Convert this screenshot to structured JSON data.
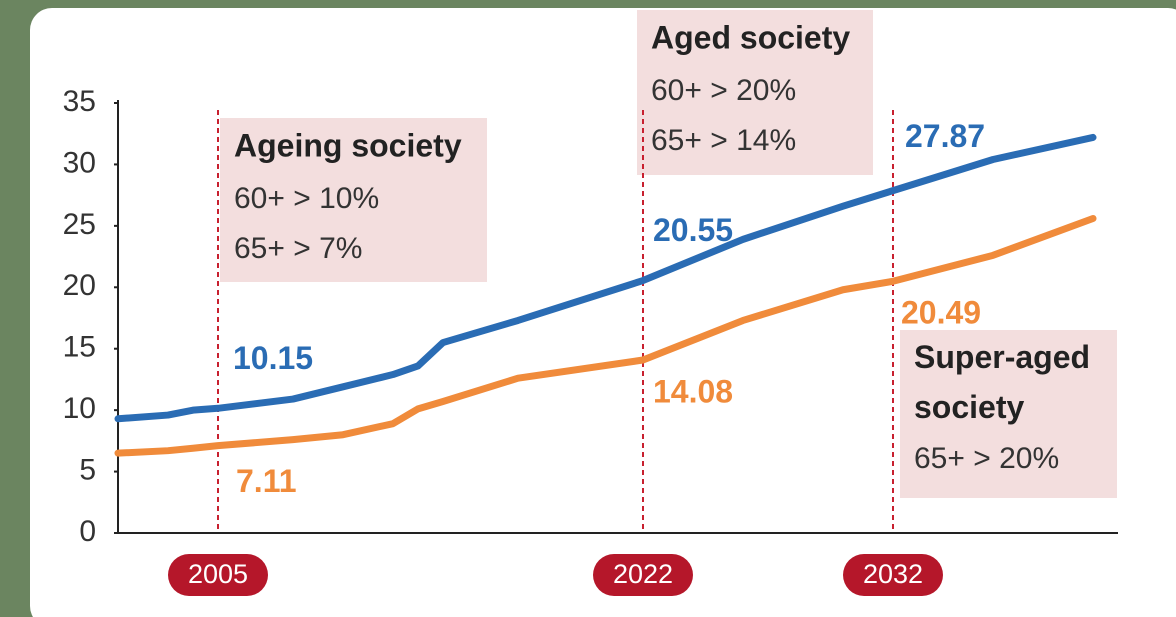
{
  "chart_data": {
    "type": "line",
    "x": [
      2001,
      2003,
      2004,
      2005,
      2008,
      2010,
      2012,
      2013,
      2014,
      2017,
      2022,
      2026,
      2030,
      2032,
      2036,
      2040
    ],
    "series": [
      {
        "color": "#2a6cb4",
        "values": [
          9.3,
          9.6,
          10.0,
          10.15,
          10.9,
          11.9,
          12.9,
          13.6,
          15.5,
          17.3,
          20.55,
          23.9,
          26.6,
          27.87,
          30.4,
          32.2
        ]
      },
      {
        "color": "#f08b3b",
        "values": [
          6.5,
          6.7,
          6.9,
          7.11,
          7.6,
          8.0,
          8.9,
          10.1,
          10.7,
          12.6,
          14.08,
          17.3,
          19.8,
          20.49,
          22.6,
          25.6
        ]
      }
    ],
    "xlim": [
      2001,
      2041
    ],
    "xticks": [
      2005,
      2022,
      2032
    ],
    "ylim": [
      0,
      35
    ],
    "yticks": [
      0,
      5,
      10,
      15,
      20,
      25,
      30,
      35
    ],
    "annotations": [
      {
        "title": "Ageing society",
        "lines": [
          "60+ > 10%",
          "65+ > 7%"
        ]
      },
      {
        "title": "Aged society",
        "lines": [
          "60+ > 20%",
          "65+ > 14%"
        ]
      },
      {
        "title": "Super-aged society",
        "lines": [
          "65+  > 20%"
        ]
      }
    ]
  }
}
